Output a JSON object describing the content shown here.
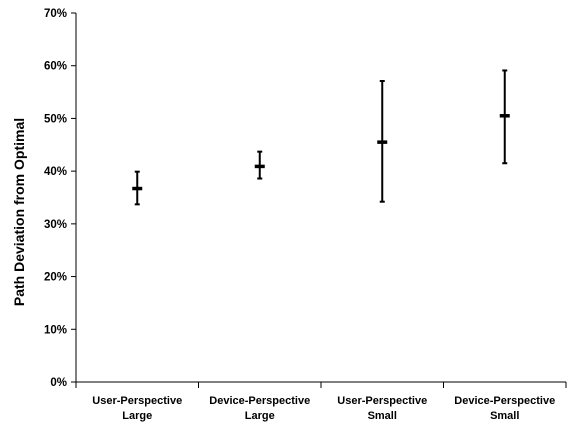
{
  "chart_data": {
    "type": "scatter",
    "title": "",
    "xlabel": "",
    "ylabel": "Path Deviation from Optimal",
    "ylim": [
      0,
      70
    ],
    "y_ticks": [
      "0%",
      "10%",
      "20%",
      "30%",
      "40%",
      "50%",
      "60%",
      "70%"
    ],
    "categories": [
      [
        "User-Perspective",
        "Large"
      ],
      [
        "Device-Perspective",
        "Large"
      ],
      [
        "User-Perspective",
        "Small"
      ],
      [
        "Device-Perspective",
        "Small"
      ]
    ],
    "series": [
      {
        "values": [
          36.7,
          40.9,
          45.5,
          50.5
        ],
        "error_low": [
          33.7,
          38.6,
          34.2,
          41.5
        ],
        "error_high": [
          39.9,
          43.7,
          57.1,
          59.1
        ]
      }
    ],
    "grid": false,
    "legend": "none",
    "marker_color": "#000000"
  }
}
